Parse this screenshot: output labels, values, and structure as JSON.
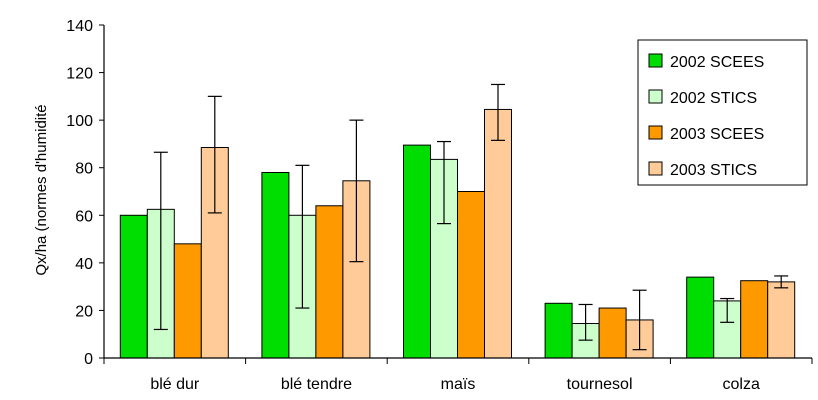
{
  "chart_data": {
    "type": "bar",
    "title": "",
    "xlabel": "",
    "ylabel": "Qx/ha (normes d'humidité",
    "ylim": [
      0,
      140
    ],
    "yticks": [
      0,
      20,
      40,
      60,
      80,
      100,
      120,
      140
    ],
    "grid": false,
    "legend_position": "top-right",
    "categories": [
      "blé dur",
      "blé tendre",
      "maïs",
      "tournesol",
      "colza"
    ],
    "series": [
      {
        "name": "2002 SCEES",
        "color": "#00dd00",
        "values": [
          60,
          78,
          89.5,
          23,
          34
        ],
        "error_low": null,
        "error_high": null
      },
      {
        "name": "2002 STICS",
        "color": "#ccffcc",
        "values": [
          62.5,
          60,
          83.5,
          14.5,
          24
        ],
        "error_low": [
          12,
          21,
          56.5,
          7.5,
          15
        ],
        "error_high": [
          86.5,
          81,
          91,
          22.5,
          25
        ]
      },
      {
        "name": "2003 SCEES",
        "color": "#ff9900",
        "values": [
          48,
          64,
          70,
          21,
          32.5
        ],
        "error_low": null,
        "error_high": null
      },
      {
        "name": "2003 STICS",
        "color": "#ffcc99",
        "values": [
          88.5,
          74.5,
          104.5,
          16,
          32
        ],
        "error_low": [
          61,
          40.5,
          91.5,
          3.5,
          29.5
        ],
        "error_high": [
          110,
          100,
          115,
          28.5,
          34.5
        ]
      }
    ]
  }
}
